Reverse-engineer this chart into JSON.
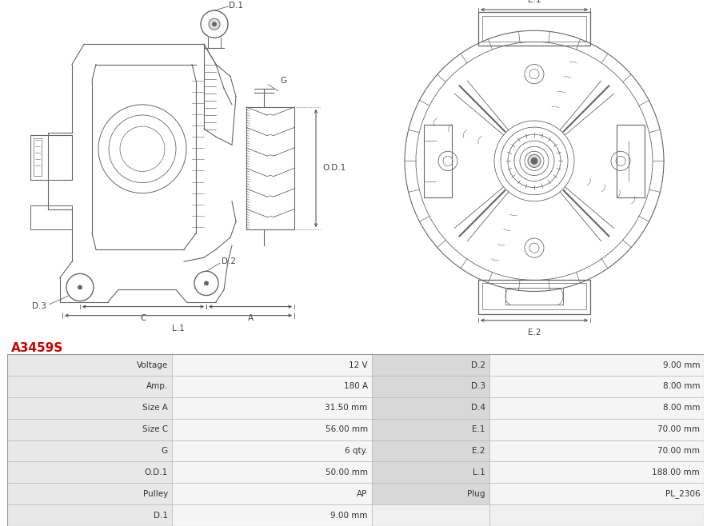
{
  "title": "A3459S",
  "title_color": "#cc0000",
  "bg_color": "#ffffff",
  "table_rows": [
    [
      "Voltage",
      "12 V",
      "D.2",
      "9.00 mm"
    ],
    [
      "Amp.",
      "180 A",
      "D.3",
      "8.00 mm"
    ],
    [
      "Size A",
      "31.50 mm",
      "D.4",
      "8.00 mm"
    ],
    [
      "Size C",
      "56.00 mm",
      "E.1",
      "70.00 mm"
    ],
    [
      "G",
      "6 qty.",
      "E.2",
      "70.00 mm"
    ],
    [
      "O.D.1",
      "50.00 mm",
      "L.1",
      "188.00 mm"
    ],
    [
      "Pulley",
      "AP",
      "Plug",
      "PL_2306"
    ],
    [
      "D.1",
      "9.00 mm",
      "",
      ""
    ]
  ],
  "col_bg_label": "#e8e8e8",
  "col_bg_value": "#f5f5f5",
  "col_bg_label2": "#d8d8d8",
  "line_color": "#666666",
  "dim_color": "#444444",
  "drawing_bg": "#f8f8f8"
}
